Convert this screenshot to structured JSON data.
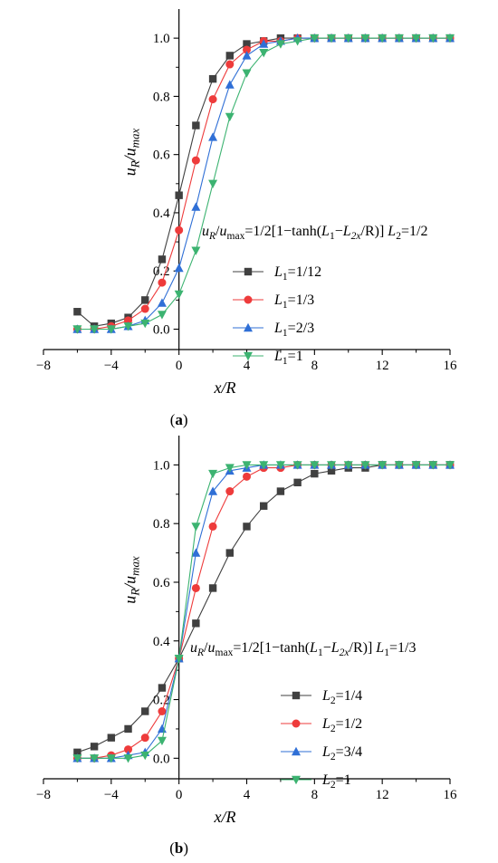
{
  "colors": {
    "axis": "#000000",
    "series": [
      "#404040",
      "#ee3b3b",
      "#2f6fd6",
      "#3cb371"
    ]
  },
  "chart_data": [
    {
      "type": "line",
      "caption": "(a)",
      "xlabel": "x/R",
      "ylabel": "u_R/u_max",
      "xlim": [
        -8,
        16
      ],
      "ylim": [
        -0.07,
        1.1
      ],
      "xticks": [
        -8,
        -4,
        0,
        4,
        8,
        12,
        16
      ],
      "yticks": [
        0.0,
        0.2,
        0.4,
        0.6,
        0.8,
        1.0
      ],
      "xtick_labels": [
        "−8",
        "−4",
        "0",
        "4",
        "8",
        "12",
        "16"
      ],
      "ytick_labels": [
        "0.0",
        "0.2",
        "0.4",
        "0.6",
        "0.8",
        "1.0"
      ],
      "equation": "u_R/u_max=1/2[1−tanh(L_1−L_2x/R)]    L_2=1/2",
      "legend": [
        "L_1=1/12",
        "L_1=1/3",
        "L_1=2/3",
        "L_1=1"
      ],
      "x": [
        -6,
        -5,
        -4,
        -3,
        -2,
        -1,
        0,
        1,
        2,
        3,
        4,
        5,
        6,
        7,
        8,
        9,
        10,
        11,
        12,
        13,
        14,
        15,
        16
      ],
      "series": [
        {
          "name": "L_1=1/12",
          "marker": "square",
          "values": [
            0.06,
            0.01,
            0.02,
            0.04,
            0.1,
            0.24,
            0.46,
            0.7,
            0.86,
            0.94,
            0.98,
            0.99,
            1.0,
            1.0,
            1.0,
            1.0,
            1.0,
            1.0,
            1.0,
            1.0,
            1.0,
            1.0,
            1.0
          ]
        },
        {
          "name": "L_1=1/3",
          "marker": "circle",
          "values": [
            0.0,
            0.0,
            0.01,
            0.03,
            0.07,
            0.16,
            0.34,
            0.58,
            0.79,
            0.91,
            0.96,
            0.99,
            0.99,
            1.0,
            1.0,
            1.0,
            1.0,
            1.0,
            1.0,
            1.0,
            1.0,
            1.0,
            1.0
          ]
        },
        {
          "name": "L_1=2/3",
          "marker": "triangle-up",
          "values": [
            0.0,
            0.0,
            0.0,
            0.01,
            0.03,
            0.09,
            0.21,
            0.42,
            0.66,
            0.84,
            0.94,
            0.98,
            0.99,
            1.0,
            1.0,
            1.0,
            1.0,
            1.0,
            1.0,
            1.0,
            1.0,
            1.0,
            1.0
          ]
        },
        {
          "name": "L_1=1",
          "marker": "triangle-down",
          "values": [
            0.0,
            0.0,
            0.0,
            0.01,
            0.02,
            0.05,
            0.12,
            0.27,
            0.5,
            0.73,
            0.88,
            0.95,
            0.98,
            0.99,
            1.0,
            1.0,
            1.0,
            1.0,
            1.0,
            1.0,
            1.0,
            1.0,
            1.0
          ]
        }
      ]
    },
    {
      "type": "line",
      "caption": "(b)",
      "xlabel": "x/R",
      "ylabel": "u_R/u_max",
      "xlim": [
        -8,
        16
      ],
      "ylim": [
        -0.07,
        1.1
      ],
      "xticks": [
        -8,
        -4,
        0,
        4,
        8,
        12,
        16
      ],
      "yticks": [
        0.0,
        0.2,
        0.4,
        0.6,
        0.8,
        1.0
      ],
      "xtick_labels": [
        "−8",
        "−4",
        "0",
        "4",
        "8",
        "12",
        "16"
      ],
      "ytick_labels": [
        "0.0",
        "0.2",
        "0.4",
        "0.6",
        "0.8",
        "1.0"
      ],
      "equation": "u_R/u_max=1/2[1−tanh(L_1−L_2x/R)]    L_1=1/3",
      "legend": [
        "L_2=1/4",
        "L_2=1/2",
        "L_2=3/4",
        "L_2=1"
      ],
      "x": [
        -6,
        -5,
        -4,
        -3,
        -2,
        -1,
        0,
        1,
        2,
        3,
        4,
        5,
        6,
        7,
        8,
        9,
        10,
        11,
        12,
        13,
        14,
        15,
        16
      ],
      "series": [
        {
          "name": "L_2=1/4",
          "marker": "square",
          "values": [
            0.02,
            0.04,
            0.07,
            0.1,
            0.16,
            0.24,
            0.34,
            0.46,
            0.58,
            0.7,
            0.79,
            0.86,
            0.91,
            0.94,
            0.97,
            0.98,
            0.99,
            0.99,
            1.0,
            1.0,
            1.0,
            1.0,
            1.0
          ]
        },
        {
          "name": "L_2=1/2",
          "marker": "circle",
          "values": [
            0.0,
            0.0,
            0.01,
            0.03,
            0.07,
            0.16,
            0.34,
            0.58,
            0.79,
            0.91,
            0.96,
            0.99,
            0.99,
            1.0,
            1.0,
            1.0,
            1.0,
            1.0,
            1.0,
            1.0,
            1.0,
            1.0,
            1.0
          ]
        },
        {
          "name": "L_2=3/4",
          "marker": "triangle-up",
          "values": [
            0.0,
            0.0,
            0.0,
            0.01,
            0.02,
            0.1,
            0.34,
            0.7,
            0.91,
            0.98,
            0.99,
            1.0,
            1.0,
            1.0,
            1.0,
            1.0,
            1.0,
            1.0,
            1.0,
            1.0,
            1.0,
            1.0,
            1.0
          ]
        },
        {
          "name": "L_2=1",
          "marker": "triangle-down",
          "values": [
            0.0,
            0.0,
            0.0,
            0.0,
            0.01,
            0.06,
            0.34,
            0.79,
            0.97,
            0.99,
            1.0,
            1.0,
            1.0,
            1.0,
            1.0,
            1.0,
            1.0,
            1.0,
            1.0,
            1.0,
            1.0,
            1.0,
            1.0
          ]
        }
      ]
    }
  ]
}
